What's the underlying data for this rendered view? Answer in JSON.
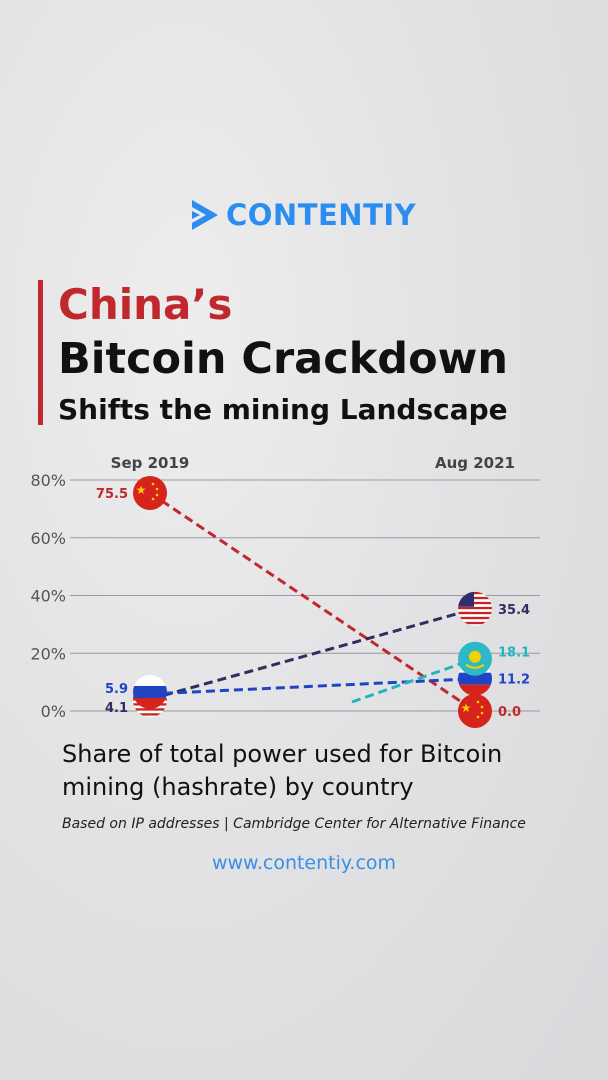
{
  "brand": {
    "name": "CONTENTIY",
    "color": "#2b8df0"
  },
  "title": {
    "line1": "China’s",
    "line2": "Bitcoin Crackdown",
    "line3": "Shifts the mining Landscape"
  },
  "subtitle": "Share of total power used for Bitcoin mining (hashrate) by country",
  "source": "Based on IP addresses | Cambridge Center for Alternative Finance",
  "url": "www.contentiy.com",
  "chart_data": {
    "type": "line",
    "categories": [
      "Sep 2019",
      "Aug 2021"
    ],
    "ylim": [
      0,
      80
    ],
    "yticks": [
      "0%",
      "20%",
      "40%",
      "60%",
      "80%"
    ],
    "grid": true,
    "series": [
      {
        "name": "China",
        "icon": "china-flag",
        "color": "#c0282e",
        "values": [
          75.5,
          0.0
        ],
        "labels": [
          "75.5",
          "0.0"
        ]
      },
      {
        "name": "United States",
        "icon": "us-flag",
        "color": "#2d2f5e",
        "values": [
          4.1,
          35.4
        ],
        "labels": [
          "4.1",
          "35.4"
        ]
      },
      {
        "name": "Russia",
        "icon": "russia-flag",
        "color": "#1f45c4",
        "values": [
          5.9,
          11.2
        ],
        "labels": [
          "5.9",
          "11.2"
        ]
      },
      {
        "name": "Kazakhstan",
        "icon": "kazakhstan-flag",
        "color": "#25b3bf",
        "values": [
          null,
          18.1
        ],
        "labels": [
          "",
          "18.1"
        ]
      }
    ]
  }
}
